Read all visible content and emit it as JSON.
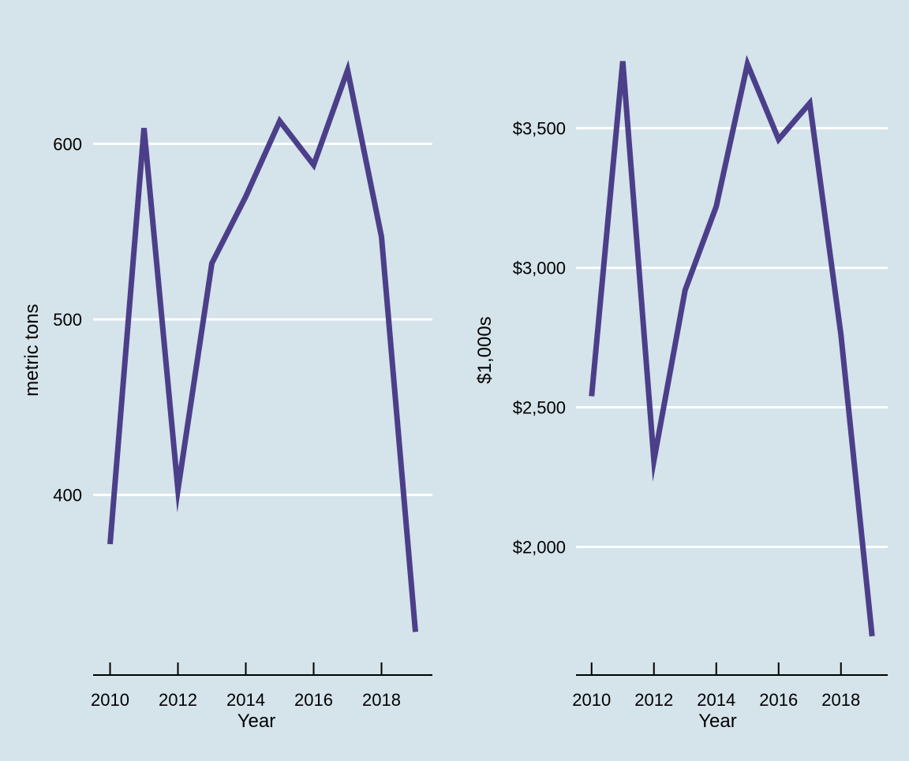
{
  "colors": {
    "background": "#d5e3ea",
    "line": "#4b3f8a",
    "grid": "#ffffff",
    "axis": "#000000"
  },
  "chart_data": [
    {
      "type": "line",
      "title": "",
      "xlabel": "Year",
      "ylabel": "metric tons",
      "x": [
        2010,
        2011,
        2012,
        2013,
        2014,
        2015,
        2016,
        2017,
        2018,
        2019
      ],
      "series": [
        {
          "values": [
            372,
            609,
            403,
            532,
            570,
            613,
            588,
            642,
            547,
            322
          ]
        }
      ],
      "xlim": [
        2009.5,
        2019.5
      ],
      "ylim": [
        310,
        655
      ],
      "xticks": [
        2010,
        2012,
        2014,
        2016,
        2018
      ],
      "xtick_labels": [
        "2010",
        "2012",
        "2014",
        "2016",
        "2018"
      ],
      "yticks": [
        400,
        500,
        600
      ],
      "ytick_labels": [
        "400",
        "500",
        "600"
      ],
      "grid": "horizontal",
      "legend": "none"
    },
    {
      "type": "line",
      "title": "",
      "xlabel": "Year",
      "ylabel": "$1,000s",
      "x": [
        2010,
        2011,
        2012,
        2013,
        2014,
        2015,
        2016,
        2017,
        2018,
        2019
      ],
      "series": [
        {
          "values": [
            2540,
            3740,
            2310,
            2920,
            3220,
            3730,
            3460,
            3590,
            2760,
            1680
          ]
        }
      ],
      "xlim": [
        2009.5,
        2019.5
      ],
      "ylim": [
        1620,
        3790
      ],
      "xticks": [
        2010,
        2012,
        2014,
        2016,
        2018
      ],
      "xtick_labels": [
        "2010",
        "2012",
        "2014",
        "2016",
        "2018"
      ],
      "yticks": [
        2000,
        2500,
        3000,
        3500
      ],
      "ytick_labels": [
        "$2,000",
        "$2,500",
        "$3,000",
        "$3,500"
      ],
      "grid": "horizontal",
      "legend": "none"
    }
  ]
}
